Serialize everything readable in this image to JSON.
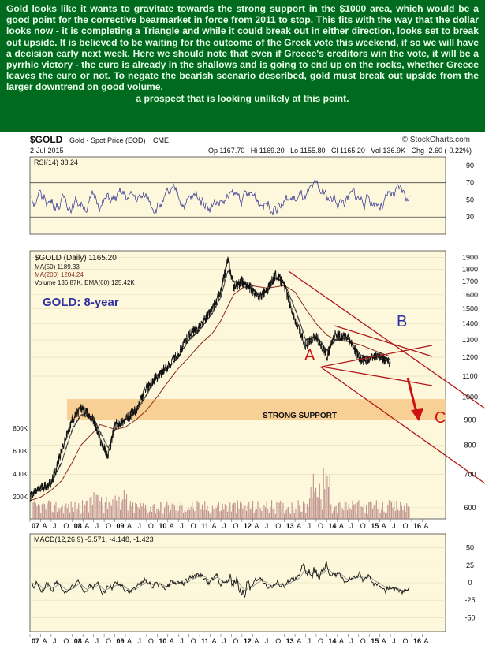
{
  "commentary": {
    "paragraph": "Gold looks like it wants to gravitate towards the strong support in the $1000 area, which would be a good point for the corrective bearmarket in force from 2011 to stop. This fits with the way that the dollar looks now - it is completing a Triangle and while it could break out in either direction, looks set to break out upside. It is believed to be waiting for the outcome of the Greek vote this weekend, if so we will have a decision early next week. Here we should note that even if Greece's creditors win the vote, it will be a pyrrhic victory - the euro is already in the shallows and is going to end up on the rocks, whether Greece leaves the euro or not. To negate the bearish scenario described, gold must break out upside from the larger downtrend on good volume.",
    "last_line": "a prospect that is looking unlikely at this point."
  },
  "header": {
    "ticker": "$GOLD",
    "name": "Gold - Spot Price (EOD)",
    "exchange": "CME",
    "copyright": "© StockCharts.com",
    "date": "2-Jul-2015",
    "ohlc": "Op 1167.70   Hi 1169.20   Lo 1155.80   Cl 1165.20   Vol 136.9K   Chg -2.60 (-0.22%)"
  },
  "colors": {
    "background": "#fdf8dc",
    "commentary_bg": "#006a1e",
    "commentary_text": "#e8ffe8",
    "price": "#111111",
    "ma50": "#222222",
    "ma200": "#8b2a1a",
    "volume": "#b58080",
    "annotation": "#cc1111",
    "support_band": "#f7c98a",
    "label_blue": "#3030a0"
  },
  "chart_data": [
    {
      "type": "line",
      "panel": "rsi",
      "legend": "RSI(14) 38.24",
      "series": [
        {
          "name": "RSI(14)",
          "last": 38.24
        }
      ],
      "y_ticks": [
        30,
        50,
        70,
        90
      ],
      "reference_lines": [
        30,
        50,
        70
      ]
    },
    {
      "type": "line",
      "panel": "price",
      "legend": [
        "$GOLD (Daily) 1165.20",
        "MA(50) 1189.33",
        "MA(200) 1204.24",
        "Volume 136.87K, EMA(60) 125.42K"
      ],
      "label": "GOLD: 8-year",
      "y_scale": "log",
      "ylim": [
        570,
        1960
      ],
      "y_ticks": [
        600,
        700,
        800,
        900,
        1000,
        1100,
        1200,
        1300,
        1400,
        1500,
        1600,
        1700,
        1800,
        1900
      ],
      "volume_ticks": [
        "200K",
        "400K",
        "600K",
        "800K"
      ],
      "x_ticks": [
        "07",
        "A",
        "J",
        "O",
        "08",
        "A",
        "J",
        "O",
        "09",
        "A",
        "J",
        "O",
        "10",
        "A",
        "J",
        "O",
        "11",
        "A",
        "J",
        "O",
        "12",
        "A",
        "J",
        "O",
        "13",
        "A",
        "J",
        "O",
        "14",
        "A",
        "J",
        "O",
        "15",
        "A",
        "J",
        "O",
        "16",
        "A"
      ],
      "x": [
        2007.0,
        2007.25,
        2007.5,
        2007.75,
        2008.0,
        2008.2,
        2008.5,
        2008.65,
        2008.85,
        2009.0,
        2009.25,
        2009.5,
        2009.75,
        2010.0,
        2010.25,
        2010.5,
        2010.75,
        2011.0,
        2011.3,
        2011.5,
        2011.67,
        2011.8,
        2012.0,
        2012.2,
        2012.4,
        2012.6,
        2012.8,
        2013.0,
        2013.25,
        2013.5,
        2013.75,
        2014.0,
        2014.2,
        2014.5,
        2014.8,
        2015.0,
        2015.2,
        2015.5
      ],
      "series": [
        {
          "name": "$GOLD",
          "values": [
            630,
            660,
            670,
            780,
            900,
            950,
            900,
            820,
            760,
            880,
            900,
            940,
            1040,
            1100,
            1150,
            1220,
            1330,
            1380,
            1500,
            1620,
            1880,
            1660,
            1700,
            1650,
            1580,
            1640,
            1760,
            1670,
            1420,
            1270,
            1320,
            1200,
            1330,
            1310,
            1180,
            1190,
            1210,
            1165
          ]
        },
        {
          "name": "MA(50)",
          "values": [
            640,
            650,
            670,
            740,
            860,
            920,
            910,
            850,
            790,
            860,
            900,
            930,
            1010,
            1100,
            1140,
            1200,
            1300,
            1360,
            1470,
            1580,
            1790,
            1700,
            1690,
            1660,
            1600,
            1620,
            1730,
            1690,
            1500,
            1300,
            1320,
            1240,
            1300,
            1310,
            1210,
            1200,
            1210,
            1189
          ]
        },
        {
          "name": "MA(200)",
          "values": [
            620,
            630,
            650,
            680,
            740,
            800,
            850,
            880,
            870,
            860,
            870,
            900,
            940,
            1000,
            1070,
            1140,
            1200,
            1270,
            1340,
            1420,
            1520,
            1600,
            1650,
            1670,
            1660,
            1650,
            1660,
            1670,
            1620,
            1500,
            1400,
            1330,
            1300,
            1290,
            1270,
            1250,
            1230,
            1204
          ]
        }
      ],
      "annotations": [
        {
          "text": "A",
          "color": "#cc1111"
        },
        {
          "text": "B",
          "color": "#3030a0"
        },
        {
          "text": "C",
          "color": "#cc1111"
        },
        {
          "text": "STRONG SUPPORT",
          "color": "#111111"
        }
      ],
      "support_band": [
        900,
        990
      ]
    },
    {
      "type": "line",
      "panel": "macd",
      "legend": "MACD(12,26,9) -5.571, -4.148, -1.423",
      "series": [
        {
          "name": "MACD",
          "last": -5.571
        },
        {
          "name": "Signal",
          "last": -4.148
        },
        {
          "name": "Histogram",
          "last": -1.423
        }
      ],
      "y_ticks": [
        -50,
        -25,
        0,
        25,
        50
      ]
    }
  ]
}
